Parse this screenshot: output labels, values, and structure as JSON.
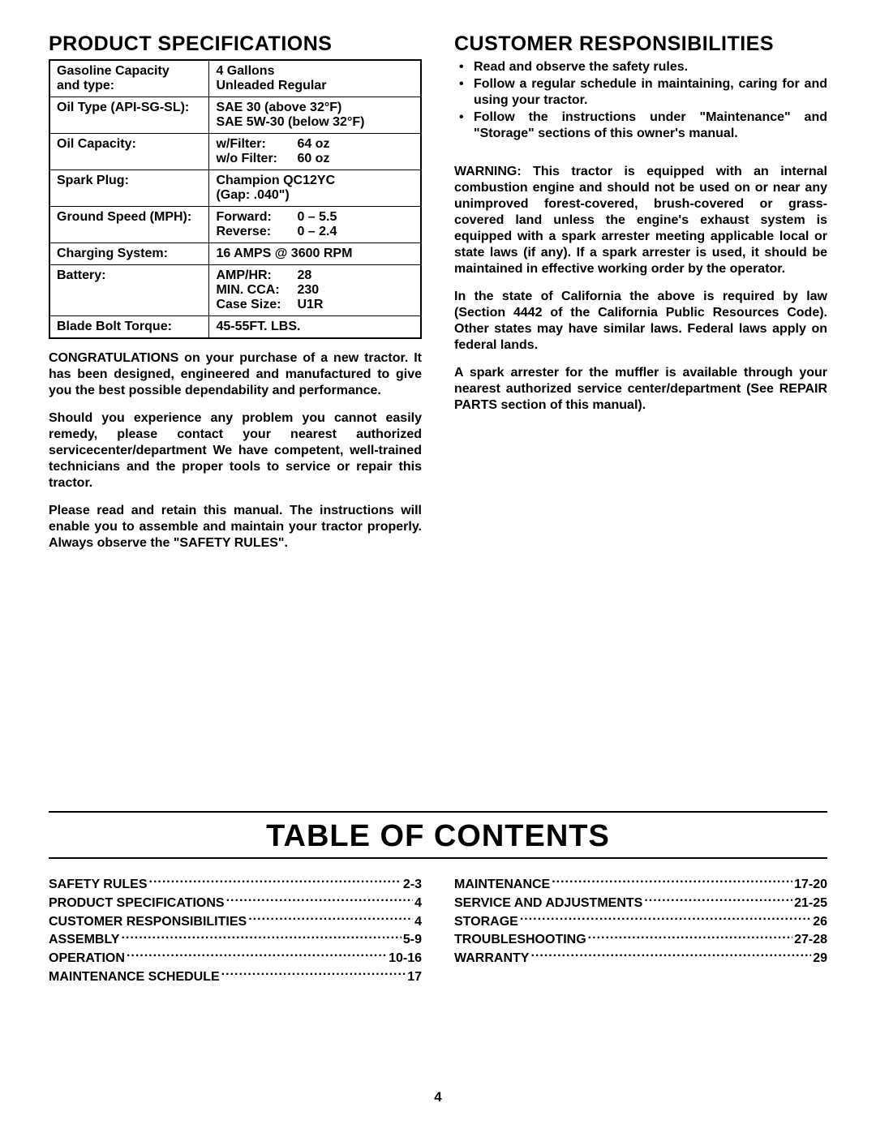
{
  "left": {
    "heading": "PRODUCT SPECIFICATIONS",
    "specs": [
      {
        "label": "Gasoline Capacity\nand type:",
        "value": "4 Gallons\nUnleaded Regular"
      },
      {
        "label": "Oil Type (API-SG-SL):",
        "value": "SAE 30 (above 32°F)\nSAE 5W-30 (below 32°F)"
      },
      {
        "label": "Oil Capacity:",
        "value_rows": [
          {
            "k": "w/Filter:",
            "v": "64 oz"
          },
          {
            "k": "w/o Filter:",
            "v": "60 oz"
          }
        ]
      },
      {
        "label": "Spark Plug:",
        "value": "Champion QC12YC\n(Gap:  .040\")"
      },
      {
        "label": "Ground Speed (MPH):",
        "value_rows": [
          {
            "k": "Forward:",
            "v": "0 – 5.5"
          },
          {
            "k": "Reverse:",
            "v": "0 – 2.4"
          }
        ]
      },
      {
        "label": "Charging System:",
        "value": "16 AMPS @ 3600 RPM"
      },
      {
        "label": "Battery:",
        "value_rows": [
          {
            "k": "AMP/HR:",
            "v": "28"
          },
          {
            "k": "MIN. CCA:",
            "v": "230"
          },
          {
            "k": "Case Size:",
            "v": "U1R"
          }
        ]
      },
      {
        "label": "Blade Bolt Torque:",
        "value": "45-55FT. LBS."
      }
    ],
    "paras": [
      "CONGRATULATIONS   on your purchase of a new tractor.  It has been designed, engineered and manufactured to give you the best possible dependability and performance.",
      "Should you experience any problem you cannot easily remedy, please contact your nearest authorized servicecenter/department We have competent, well-trained technicians and the proper tools to service or repair this tractor.",
      "Please read and retain this manual.  The instructions will enable you to assemble and maintain your tractor properly.  Always observe the \"SAFETY RULES\"."
    ]
  },
  "right": {
    "heading": "CUSTOMER RESPONSIBILITIES",
    "bullets": [
      "Read and observe the safety rules.",
      "Follow a regular schedule in maintaining, caring for and using your tractor.",
      "Follow the instructions under \"Maintenance\" and \"Storage\" sections of this owner's manual."
    ],
    "paras": [
      "WARNING:  This tractor is equipped with an internal combustion engine and should not be used on or near any unimproved forest-covered, brush-covered or grass-covered land unless the engine's exhaust system is equipped with a spark arrester meeting applicable local or state laws (if any).  If a spark arrester is used, it should be maintained in effective working order by the operator.",
      "In the state of California the above is required by law (Section 4442 of the California Public Resources Code). Other states may have similar laws. Federal laws apply on federal lands.",
      "A spark arrester for the muffler is available through your nearest authorized service center/department (See REPAIR PARTS section of this manual)."
    ]
  },
  "toc": {
    "title": "TABLE OF CONTENTS",
    "left": [
      {
        "label": "SAFETY RULES",
        "page": "2-3"
      },
      {
        "label": "PRODUCT SPECIFICATIONS",
        "page": "4"
      },
      {
        "label": "CUSTOMER RESPONSIBILITIES",
        "page": "4"
      },
      {
        "label": "ASSEMBLY",
        "page": "5-9"
      },
      {
        "label": "OPERATION",
        "page": "10-16"
      },
      {
        "label": "MAINTENANCE SCHEDULE",
        "page": "17"
      }
    ],
    "right": [
      {
        "label": "MAINTENANCE",
        "page": "17-20"
      },
      {
        "label": "SERVICE AND ADJUSTMENTS",
        "page": "21-25"
      },
      {
        "label": "STORAGE",
        "page": "26"
      },
      {
        "label": "TROUBLESHOOTING",
        "page": "27-28"
      },
      {
        "label": "WARRANTY",
        "page": "29"
      }
    ]
  },
  "page_number": "4"
}
